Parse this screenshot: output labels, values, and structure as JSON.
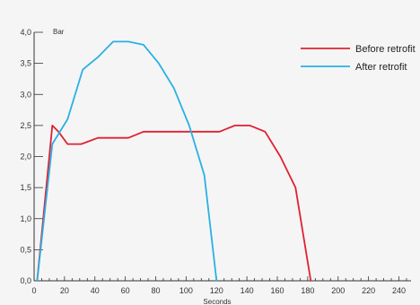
{
  "chart_data": {
    "type": "line",
    "title": "",
    "xlabel": "Seconds",
    "ylabel": "Bar",
    "xlim": [
      0,
      260
    ],
    "ylim": [
      0,
      4
    ],
    "x_ticks": [
      0,
      20,
      40,
      60,
      80,
      100,
      120,
      140,
      160,
      180,
      200,
      220,
      240
    ],
    "y_ticks": [
      "0,0",
      "0,5",
      "1,0",
      "1,5",
      "2,0",
      "2,5",
      "3,0",
      "3,5",
      "4,0"
    ],
    "grid": false,
    "legend_position": "top-right",
    "series": [
      {
        "name": "Before retrofit",
        "color": "#e02030",
        "points": [
          [
            2,
            0
          ],
          [
            12,
            2.5
          ],
          [
            16,
            2.4
          ],
          [
            22,
            2.2
          ],
          [
            31,
            2.2
          ],
          [
            42,
            2.3
          ],
          [
            62,
            2.3
          ],
          [
            72,
            2.4
          ],
          [
            102,
            2.4
          ],
          [
            122,
            2.4
          ],
          [
            132,
            2.5
          ],
          [
            142,
            2.5
          ],
          [
            152,
            2.4
          ],
          [
            162,
            2.0
          ],
          [
            172,
            1.5
          ],
          [
            182,
            0
          ]
        ]
      },
      {
        "name": "After retrofit",
        "color": "#2ab0e4",
        "points": [
          [
            2,
            0
          ],
          [
            12,
            2.2
          ],
          [
            22,
            2.6
          ],
          [
            32,
            3.4
          ],
          [
            42,
            3.6
          ],
          [
            52,
            3.85
          ],
          [
            62,
            3.85
          ],
          [
            72,
            3.8
          ],
          [
            82,
            3.5
          ],
          [
            92,
            3.1
          ],
          [
            102,
            2.5
          ],
          [
            112,
            1.7
          ],
          [
            120,
            0
          ]
        ]
      }
    ]
  }
}
